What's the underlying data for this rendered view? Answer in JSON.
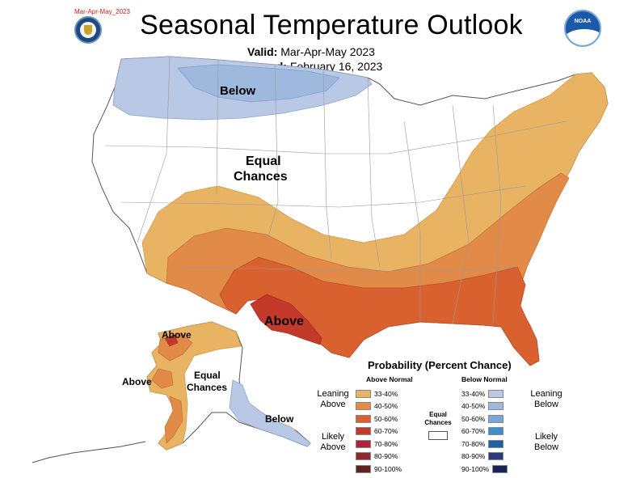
{
  "header": {
    "corner_tag": "Mar-Apr-May_2023",
    "title": "Seasonal Temperature Outlook",
    "valid_label": "Valid:",
    "valid_value": "Mar-Apr-May 2023",
    "issued_label": "Issued:",
    "issued_value": "February 16, 2023"
  },
  "logos": {
    "left": "doc-seal",
    "right": "noaa-logo",
    "noaa_text": "NOAA"
  },
  "map_labels": {
    "below": "Below",
    "equal_1": "Equal",
    "chances": "Chances",
    "above": "Above",
    "ak_above_1": "Above",
    "ak_above_2": "Above",
    "ak_equal_1": "Equal",
    "ak_chances": "Chances",
    "ak_below": "Below"
  },
  "legend": {
    "title": "Probability (Percent Chance)",
    "above_header": "Above Normal",
    "below_header": "Below Normal",
    "leaning_above": [
      "Leaning",
      "Above"
    ],
    "likely_above": [
      "Likely",
      "Above"
    ],
    "leaning_below": [
      "Leaning",
      "Below"
    ],
    "likely_below": [
      "Likely",
      "Below"
    ],
    "equal_chances": [
      "Equal",
      "Chances"
    ],
    "above_rows": [
      {
        "label": "33-40%",
        "color": "#e8b463"
      },
      {
        "label": "40-50%",
        "color": "#e28a48"
      },
      {
        "label": "50-60%",
        "color": "#d9602f"
      },
      {
        "label": "60-70%",
        "color": "#c33a2b"
      },
      {
        "label": "70-80%",
        "color": "#b0243b"
      },
      {
        "label": "80-90%",
        "color": "#8c2b2a"
      },
      {
        "label": "90-100%",
        "color": "#5e2420"
      }
    ],
    "below_rows": [
      {
        "label": "33-40%",
        "color": "#b9c8e4"
      },
      {
        "label": "40-50%",
        "color": "#9fb9de"
      },
      {
        "label": "50-60%",
        "color": "#79a7d9"
      },
      {
        "label": "60-70%",
        "color": "#3f8fcd"
      },
      {
        "label": "70-80%",
        "color": "#1f5fa6"
      },
      {
        "label": "80-90%",
        "color": "#2a3a7e"
      },
      {
        "label": "90-100%",
        "color": "#1a2358"
      }
    ]
  }
}
